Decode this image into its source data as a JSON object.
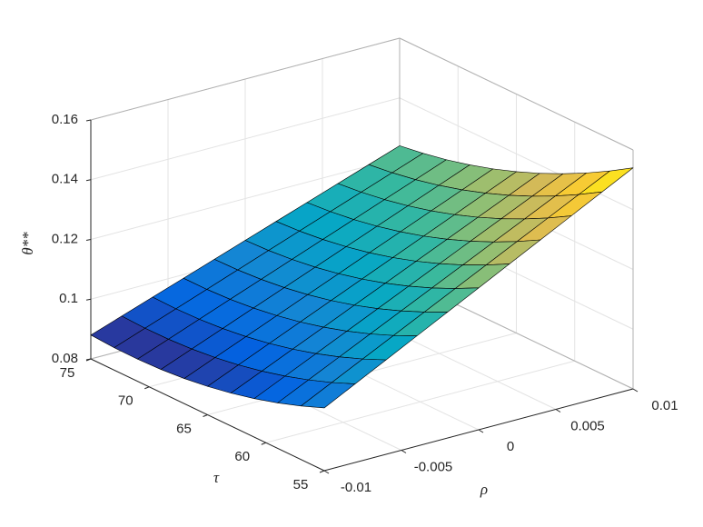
{
  "chart_data": {
    "type": "surface",
    "x": [
      -0.01,
      -0.008,
      -0.006,
      -0.004,
      -0.002,
      0,
      0.002,
      0.004,
      0.006,
      0.008,
      0.01
    ],
    "y": [
      55,
      57,
      59,
      61,
      63,
      65,
      67,
      69,
      71,
      73,
      75
    ],
    "z": [
      [
        0.101,
        0.1063,
        0.1116,
        0.1169,
        0.1222,
        0.1275,
        0.1328,
        0.1381,
        0.1434,
        0.1487,
        0.154
      ],
      [
        0.0979,
        0.10303,
        0.10816,
        0.11329,
        0.11842,
        0.12355,
        0.12868,
        0.13381,
        0.13894,
        0.14407,
        0.1492
      ],
      [
        0.0952,
        0.10016,
        0.10512,
        0.11008,
        0.11504,
        0.12,
        0.12496,
        0.12992,
        0.13488,
        0.13984,
        0.1448
      ],
      [
        0.0929,
        0.09769,
        0.10248,
        0.10727,
        0.11206,
        0.11685,
        0.12164,
        0.12643,
        0.13122,
        0.13601,
        0.1408
      ],
      [
        0.091,
        0.09562,
        0.10024,
        0.10486,
        0.10948,
        0.1141,
        0.11872,
        0.12334,
        0.12796,
        0.13258,
        0.1372
      ],
      [
        0.0895,
        0.09395,
        0.0984,
        0.10285,
        0.1073,
        0.11175,
        0.1162,
        0.12065,
        0.1251,
        0.12955,
        0.134
      ],
      [
        0.0884,
        0.09268,
        0.09696,
        0.10124,
        0.10552,
        0.1098,
        0.11408,
        0.11836,
        0.12264,
        0.12692,
        0.1312
      ],
      [
        0.0877,
        0.09181,
        0.09592,
        0.10003,
        0.10414,
        0.10825,
        0.11236,
        0.11647,
        0.12058,
        0.12469,
        0.1288
      ],
      [
        0.0874,
        0.09134,
        0.09528,
        0.09922,
        0.10316,
        0.1071,
        0.11104,
        0.11498,
        0.11892,
        0.12286,
        0.1268
      ],
      [
        0.0875,
        0.09127,
        0.09504,
        0.09881,
        0.10258,
        0.10635,
        0.11012,
        0.11389,
        0.11766,
        0.12143,
        0.1252
      ],
      [
        0.088,
        0.0916,
        0.0952,
        0.0988,
        0.1024,
        0.106,
        0.1096,
        0.1132,
        0.1168,
        0.1204,
        0.124
      ]
    ],
    "xlim": [
      -0.01,
      0.01
    ],
    "ylim": [
      55,
      75
    ],
    "zlim": [
      0.08,
      0.16
    ],
    "xticks": [
      -0.01,
      -0.005,
      0,
      0.005,
      0.01
    ],
    "yticks": [
      55,
      60,
      65,
      70,
      75
    ],
    "zticks": [
      0.08,
      0.1,
      0.12,
      0.14,
      0.16
    ],
    "xlabel": "ρ",
    "ylabel": "τ",
    "zlabel": "θ**",
    "grid": true,
    "colormap": "parula"
  }
}
